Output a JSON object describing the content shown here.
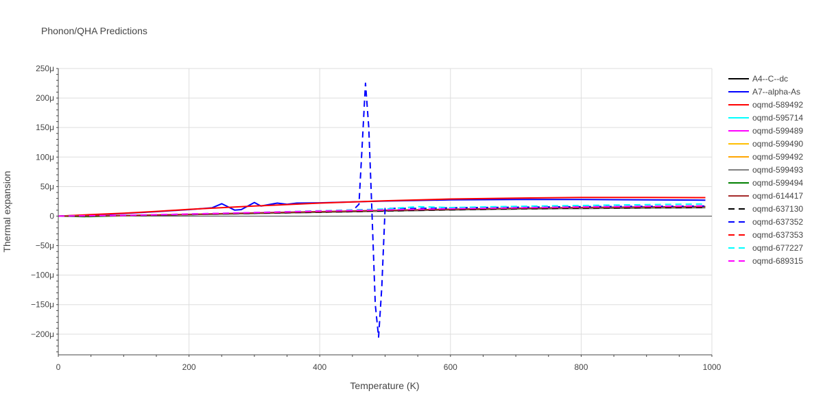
{
  "chart_data": {
    "type": "line",
    "title": "Phonon/QHA Predictions",
    "xlabel": "Temperature (K)",
    "ylabel": "Thermal expansion",
    "xlim": [
      0,
      1000
    ],
    "ylim": [
      -235,
      250
    ],
    "x_ticks": [
      0,
      200,
      400,
      600,
      800,
      1000
    ],
    "x_tick_labels": [
      "0",
      "200",
      "400",
      "600",
      "800",
      "1000"
    ],
    "y_ticks": [
      250,
      200,
      150,
      100,
      50,
      0,
      -50,
      -100,
      -150,
      -200
    ],
    "y_tick_labels": [
      "250μ",
      "200μ",
      "150μ",
      "100μ",
      "50μ",
      "0",
      "−50μ",
      "−100μ",
      "−150μ",
      "−200μ"
    ],
    "grid": true,
    "legend_position": "right",
    "series": [
      {
        "name": "A4--C--dc",
        "color": "#000000",
        "dash": "solid",
        "points": [
          [
            0,
            0
          ],
          [
            100,
            0.8
          ],
          [
            200,
            2.5
          ],
          [
            300,
            4.5
          ],
          [
            400,
            6.5
          ],
          [
            500,
            8.5
          ],
          [
            600,
            10.5
          ],
          [
            700,
            12
          ],
          [
            800,
            13
          ],
          [
            900,
            13.8
          ],
          [
            990,
            14.3
          ]
        ]
      },
      {
        "name": "A7--alpha-As",
        "color": "#0000ff",
        "dash": "solid",
        "points": [
          [
            0,
            0
          ],
          [
            50,
            2
          ],
          [
            100,
            4.5
          ],
          [
            150,
            7.5
          ],
          [
            200,
            11
          ],
          [
            235,
            14
          ],
          [
            250,
            21
          ],
          [
            270,
            10
          ],
          [
            280,
            11
          ],
          [
            300,
            23
          ],
          [
            310,
            17
          ],
          [
            335,
            22
          ],
          [
            350,
            20
          ],
          [
            365,
            22
          ],
          [
            400,
            22.5
          ],
          [
            450,
            24
          ],
          [
            500,
            25.5
          ],
          [
            600,
            27.5
          ],
          [
            700,
            28
          ],
          [
            800,
            28
          ],
          [
            900,
            27.5
          ],
          [
            990,
            27
          ]
        ]
      },
      {
        "name": "oqmd-589492",
        "color": "#ff0000",
        "dash": "solid",
        "points": [
          [
            0,
            0
          ],
          [
            50,
            2.5
          ],
          [
            100,
            5
          ],
          [
            150,
            8
          ],
          [
            200,
            11.5
          ],
          [
            300,
            17
          ],
          [
            400,
            22
          ],
          [
            500,
            26
          ],
          [
            600,
            29
          ],
          [
            700,
            30.5
          ],
          [
            800,
            31.5
          ],
          [
            900,
            31.5
          ],
          [
            990,
            31.3
          ]
        ]
      },
      {
        "name": "oqmd-595714",
        "color": "#00ffff",
        "dash": "solid",
        "points": [
          [
            0,
            0
          ],
          [
            100,
            0.8
          ],
          [
            200,
            2.5
          ],
          [
            300,
            5
          ],
          [
            400,
            7
          ],
          [
            500,
            9
          ],
          [
            600,
            11
          ],
          [
            700,
            12.5
          ],
          [
            800,
            13.5
          ],
          [
            900,
            14.5
          ],
          [
            990,
            15
          ]
        ]
      },
      {
        "name": "oqmd-599489",
        "color": "#ff00ff",
        "dash": "solid",
        "points": [
          [
            0,
            0
          ],
          [
            100,
            1
          ],
          [
            200,
            3
          ],
          [
            300,
            5.5
          ],
          [
            400,
            7.5
          ],
          [
            500,
            9.5
          ],
          [
            600,
            11.5
          ],
          [
            700,
            13
          ],
          [
            800,
            14
          ],
          [
            900,
            15
          ],
          [
            990,
            15.5
          ]
        ]
      },
      {
        "name": "oqmd-599490",
        "color": "#ffbf00",
        "dash": "solid",
        "points": [
          [
            0,
            0
          ],
          [
            100,
            0.9
          ],
          [
            200,
            2.8
          ],
          [
            300,
            5
          ],
          [
            400,
            7.2
          ],
          [
            500,
            9.2
          ],
          [
            600,
            11.2
          ],
          [
            700,
            12.7
          ],
          [
            800,
            13.8
          ],
          [
            900,
            14.6
          ],
          [
            990,
            15.2
          ]
        ]
      },
      {
        "name": "oqmd-599492",
        "color": "#ffa500",
        "dash": "solid",
        "points": [
          [
            0,
            0
          ],
          [
            100,
            0.9
          ],
          [
            200,
            2.7
          ],
          [
            300,
            4.9
          ],
          [
            400,
            7
          ],
          [
            500,
            9
          ],
          [
            600,
            11
          ],
          [
            700,
            12.5
          ],
          [
            800,
            13.6
          ],
          [
            900,
            14.4
          ],
          [
            990,
            15
          ]
        ]
      },
      {
        "name": "oqmd-599493",
        "color": "#808080",
        "dash": "solid",
        "points": [
          [
            0,
            0
          ],
          [
            100,
            0.7
          ],
          [
            200,
            2.4
          ],
          [
            300,
            4.5
          ],
          [
            400,
            6.6
          ],
          [
            500,
            8.6
          ],
          [
            600,
            10.6
          ],
          [
            700,
            12
          ],
          [
            800,
            13.1
          ],
          [
            900,
            13.9
          ],
          [
            990,
            14.4
          ]
        ]
      },
      {
        "name": "oqmd-599494",
        "color": "#008000",
        "dash": "solid",
        "points": [
          [
            0,
            0
          ],
          [
            40,
            -1
          ],
          [
            100,
            0.6
          ],
          [
            200,
            2.5
          ],
          [
            300,
            5
          ],
          [
            400,
            7.2
          ],
          [
            500,
            9.5
          ],
          [
            600,
            11.5
          ],
          [
            700,
            13
          ],
          [
            800,
            14.3
          ],
          [
            900,
            15.3
          ],
          [
            990,
            16
          ]
        ]
      },
      {
        "name": "oqmd-614417",
        "color": "#a52a2a",
        "dash": "solid",
        "points": [
          [
            0,
            0
          ],
          [
            100,
            0.9
          ],
          [
            200,
            2.8
          ],
          [
            300,
            5.2
          ],
          [
            400,
            7.5
          ],
          [
            500,
            9.6
          ],
          [
            600,
            11.6
          ],
          [
            700,
            13.2
          ],
          [
            800,
            14.5
          ],
          [
            900,
            15.5
          ],
          [
            990,
            16.2
          ]
        ]
      },
      {
        "name": "oqmd-637130",
        "color": "#000000",
        "dash": "dash",
        "points": [
          [
            0,
            0
          ],
          [
            100,
            0.8
          ],
          [
            200,
            2.6
          ],
          [
            300,
            4.8
          ],
          [
            400,
            6.9
          ],
          [
            500,
            8.9
          ],
          [
            600,
            10.9
          ],
          [
            700,
            12.4
          ],
          [
            800,
            13.5
          ],
          [
            900,
            14.3
          ],
          [
            990,
            14.8
          ]
        ]
      },
      {
        "name": "oqmd-637352",
        "color": "#0000ff",
        "dash": "dash",
        "points": [
          [
            0,
            0
          ],
          [
            100,
            1
          ],
          [
            200,
            3
          ],
          [
            300,
            5.5
          ],
          [
            400,
            8
          ],
          [
            450,
            9
          ],
          [
            460,
            20
          ],
          [
            465,
            120
          ],
          [
            470,
            225
          ],
          [
            475,
            150
          ],
          [
            480,
            5
          ],
          [
            485,
            -150
          ],
          [
            490,
            -205
          ],
          [
            495,
            -120
          ],
          [
            500,
            13
          ],
          [
            550,
            13
          ],
          [
            600,
            14
          ],
          [
            700,
            15
          ],
          [
            800,
            16
          ],
          [
            900,
            16.5
          ],
          [
            990,
            17
          ]
        ]
      },
      {
        "name": "oqmd-637353",
        "color": "#ff0000",
        "dash": "dash",
        "points": [
          [
            0,
            0
          ],
          [
            100,
            1
          ],
          [
            200,
            3
          ],
          [
            300,
            5.5
          ],
          [
            400,
            7.8
          ],
          [
            500,
            10
          ],
          [
            600,
            12
          ],
          [
            700,
            13.5
          ],
          [
            800,
            14.7
          ],
          [
            900,
            15.6
          ],
          [
            990,
            16.3
          ]
        ]
      },
      {
        "name": "oqmd-677227",
        "color": "#00ffff",
        "dash": "dash",
        "points": [
          [
            0,
            0
          ],
          [
            100,
            1.2
          ],
          [
            200,
            3.5
          ],
          [
            300,
            6
          ],
          [
            400,
            9
          ],
          [
            500,
            12
          ],
          [
            550,
            16
          ],
          [
            600,
            14.5
          ],
          [
            700,
            16.5
          ],
          [
            800,
            18
          ],
          [
            900,
            19.5
          ],
          [
            990,
            20.5
          ]
        ]
      },
      {
        "name": "oqmd-689315",
        "color": "#ff00ff",
        "dash": "dash",
        "points": [
          [
            0,
            0
          ],
          [
            100,
            1.2
          ],
          [
            200,
            3.5
          ],
          [
            300,
            6
          ],
          [
            400,
            8.5
          ],
          [
            500,
            10.5
          ],
          [
            600,
            12.5
          ],
          [
            700,
            14
          ],
          [
            800,
            15.5
          ],
          [
            900,
            16.5
          ],
          [
            990,
            17.2
          ]
        ]
      }
    ]
  }
}
